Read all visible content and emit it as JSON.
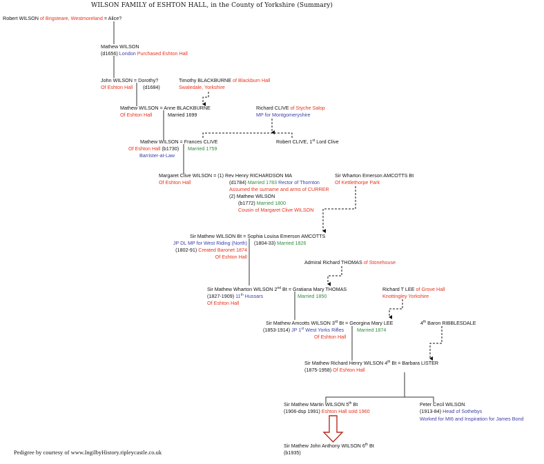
{
  "title": "WILSON FAMILY of ESHTON HALL, in the County of Yorkshire (Summary)",
  "footer": "Pedigree by courtesy of www.IngilbyHistory.ripleycastle.co.uk",
  "colors": {
    "k": "#111111",
    "r": "#e4321c",
    "b": "#3a3fa6",
    "g": "#2f8a3c",
    "arrow": "#b52a1e"
  },
  "entries": [
    [
      {
        "t": "Robert WILSON "
      },
      {
        "t": "of Brigsteare, Westmoreland",
        "c": "r"
      },
      {
        "t": " = Alice?"
      }
    ],
    [
      {
        "t": "Mathew WILSON"
      }
    ],
    [
      {
        "t": "(d1656) "
      },
      {
        "t": "London",
        "c": "b"
      },
      {
        "t": " Purchased Eshton Hall",
        "c": "r"
      }
    ],
    [
      {
        "t": "John WILSON = Dorothy?"
      }
    ],
    [
      {
        "t": "Of Eshton Hall",
        "c": "r"
      }
    ],
    [
      {
        "t": "(d1684)"
      }
    ],
    [
      {
        "t": "Timothy BLACKBURNE "
      },
      {
        "t": "of Blackburn Hall",
        "c": "r"
      }
    ],
    [
      {
        "t": "Swaledale, Yorkshire",
        "c": "r"
      }
    ],
    [
      {
        "t": "Mathew WILSON = Anne BLACKBURNE"
      }
    ],
    [
      {
        "t": "Of Eshton Hall",
        "c": "r"
      }
    ],
    [
      {
        "t": "Married 1699"
      }
    ],
    [
      {
        "t": "Richard CLIVE "
      },
      {
        "t": "of Styche Salop",
        "c": "r"
      }
    ],
    [
      {
        "t": "MP for Montgomeryshire",
        "c": "b"
      }
    ],
    [
      {
        "t": "Mathew WILSON = Frances CLIVE"
      }
    ],
    [
      {
        "t": "Of Eshton Hall",
        "c": "r"
      },
      {
        "t": " (b1730)"
      }
    ],
    [
      {
        "t": "Married 1759",
        "c": "g"
      }
    ],
    [
      {
        "t": "Barrister-at-Law",
        "c": "b"
      }
    ],
    [
      {
        "t": "Robert CLIVE, 1"
      },
      {
        "t": "st",
        "sup": true
      },
      {
        "t": " Lord Clive"
      }
    ],
    [
      {
        "t": "Margaret Clive WILSON = (1) Rev Henry RICHARDSON MA"
      }
    ],
    [
      {
        "t": "Of Eshton Hall",
        "c": "r"
      }
    ],
    [
      {
        "t": "(d1784) "
      },
      {
        "t": "Married 1783",
        "c": "g"
      },
      {
        "t": " Rector of Thornton",
        "c": "b"
      }
    ],
    [
      {
        "t": "Assumed the surname and arms of CURRER",
        "c": "r"
      }
    ],
    [
      {
        "t": "(2) Mathew WILSON"
      }
    ],
    [
      {
        "t": "(b1772) "
      },
      {
        "t": "Married 1800",
        "c": "g"
      }
    ],
    [
      {
        "t": "Cousin of Margaret Clive WILSON",
        "c": "r"
      }
    ],
    [
      {
        "t": "Sir Wharton Emerson AMCOTTS Bt"
      }
    ],
    [
      {
        "t": "Of Kettlethorpe Park",
        "c": "r"
      }
    ],
    [
      {
        "t": "Sir Mathew WILSON Bt = Sophia Louisa Emerson AMCOTTS"
      }
    ],
    [
      {
        "t": "JP DL MP for West Riding (North)",
        "c": "b"
      }
    ],
    [
      {
        "t": "(1802-91) "
      },
      {
        "t": "Created Baronet 1874",
        "c": "r"
      }
    ],
    [
      {
        "t": "Of Eshton Hall",
        "c": "r"
      }
    ],
    [
      {
        "t": "(1804-33) "
      },
      {
        "t": "Married 1826",
        "c": "g"
      }
    ],
    [
      {
        "t": "Admiral Richard THOMAS "
      },
      {
        "t": "of Stonehouse",
        "c": "r"
      }
    ],
    [
      {
        "t": "Sir Mathew Wharton WILSON 2"
      },
      {
        "t": "nd",
        "sup": true
      },
      {
        "t": " Bt = Gratiana Mary THOMAS"
      }
    ],
    [
      {
        "t": "(1827-1909) "
      },
      {
        "t": "11",
        "c": "b"
      },
      {
        "t": "th",
        "c": "b",
        "sup": true
      },
      {
        "t": " Hussars",
        "c": "b"
      }
    ],
    [
      {
        "t": "Of Eshton Hall",
        "c": "r"
      }
    ],
    [
      {
        "t": "Married 1850",
        "c": "g"
      }
    ],
    [
      {
        "t": "Richard T LEE "
      },
      {
        "t": "of Grove Hall",
        "c": "r"
      }
    ],
    [
      {
        "t": "Knottingley Yorkshire",
        "c": "r"
      }
    ],
    [
      {
        "t": "Sir Mathew Amcotts WILSON 3"
      },
      {
        "t": "rd",
        "sup": true
      },
      {
        "t": " Bt = Georgina Mary LEE"
      }
    ],
    [
      {
        "t": "(1853-1914) "
      },
      {
        "t": "JP 1",
        "c": "b"
      },
      {
        "t": "st",
        "c": "b",
        "sup": true
      },
      {
        "t": " West Yorks Rifles",
        "c": "b"
      }
    ],
    [
      {
        "t": "Married 1874",
        "c": "g"
      }
    ],
    [
      {
        "t": "Of Eshton Hall",
        "c": "r"
      }
    ],
    [
      {
        "t": "4"
      },
      {
        "t": "th",
        "sup": true
      },
      {
        "t": " Baron RIBBLESDALE"
      }
    ],
    [
      {
        "t": "Sir Mathew Richard Henry WILSON 4"
      },
      {
        "t": "th",
        "sup": true
      },
      {
        "t": " Bt = Barbara LISTER"
      }
    ],
    [
      {
        "t": "(1875-1958) "
      },
      {
        "t": "Of Eshton Hall",
        "c": "r"
      }
    ],
    [
      {
        "t": "Sir Mathew Martin WILSON 5"
      },
      {
        "t": "th",
        "sup": true
      },
      {
        "t": " Bt"
      }
    ],
    [
      {
        "t": "(1906-dsp 1991) "
      },
      {
        "t": "Eshton Hall sold 1960",
        "c": "r"
      }
    ],
    [
      {
        "t": "Peter Cecil WILSON"
      }
    ],
    [
      {
        "t": "(1913-84) "
      },
      {
        "t": "Head of Sothebys",
        "c": "b"
      }
    ],
    [
      {
        "t": "Worked for MI6 and Inspiration for James Bond",
        "c": "b"
      }
    ],
    [
      {
        "t": "Sir Mathew John Anthony WILSON 6"
      },
      {
        "t": "th",
        "sup": true
      },
      {
        "t": " Bt"
      }
    ],
    [
      {
        "t": "(b1935)"
      }
    ]
  ]
}
